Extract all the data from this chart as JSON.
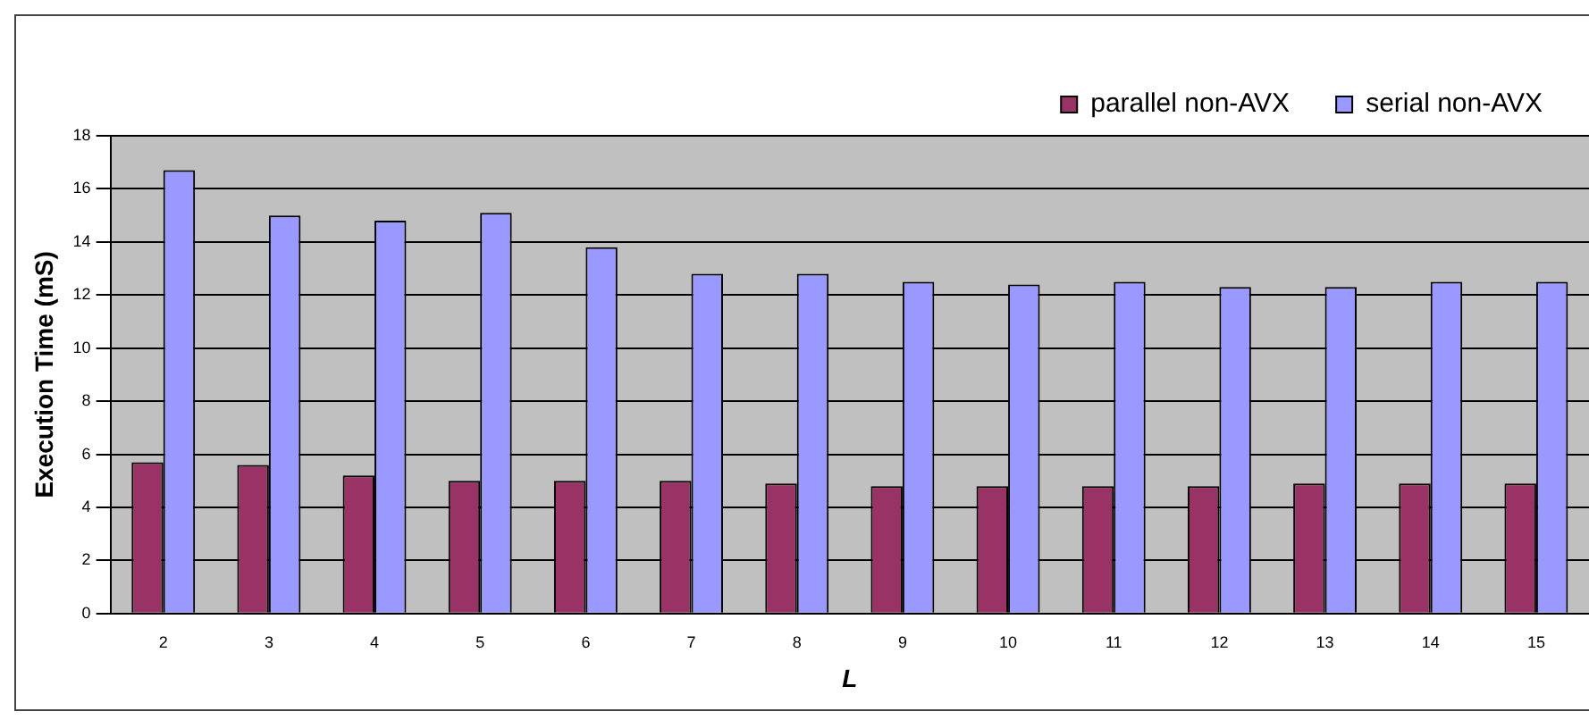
{
  "chart_data": {
    "type": "bar",
    "xlabel": "L",
    "ylabel": "Execution Time (mS)",
    "categories": [
      "2",
      "3",
      "4",
      "5",
      "6",
      "7",
      "8",
      "9",
      "10",
      "11",
      "12",
      "13",
      "14",
      "15"
    ],
    "series": [
      {
        "name": "parallel non-AVX",
        "color": "#993366",
        "values": [
          5.7,
          5.6,
          5.2,
          5.0,
          5.0,
          5.0,
          4.9,
          4.8,
          4.8,
          4.8,
          4.8,
          4.9,
          4.9,
          4.9
        ]
      },
      {
        "name": "serial non-AVX",
        "color": "#9999ff",
        "values": [
          16.7,
          15.0,
          14.8,
          15.1,
          13.8,
          12.8,
          12.8,
          12.5,
          12.4,
          12.5,
          12.3,
          12.3,
          12.5,
          12.5
        ]
      }
    ],
    "ylim": [
      0,
      18
    ],
    "yticks": [
      0,
      2,
      4,
      6,
      8,
      10,
      12,
      14,
      16,
      18
    ],
    "grid": "y",
    "legend": "top right"
  }
}
